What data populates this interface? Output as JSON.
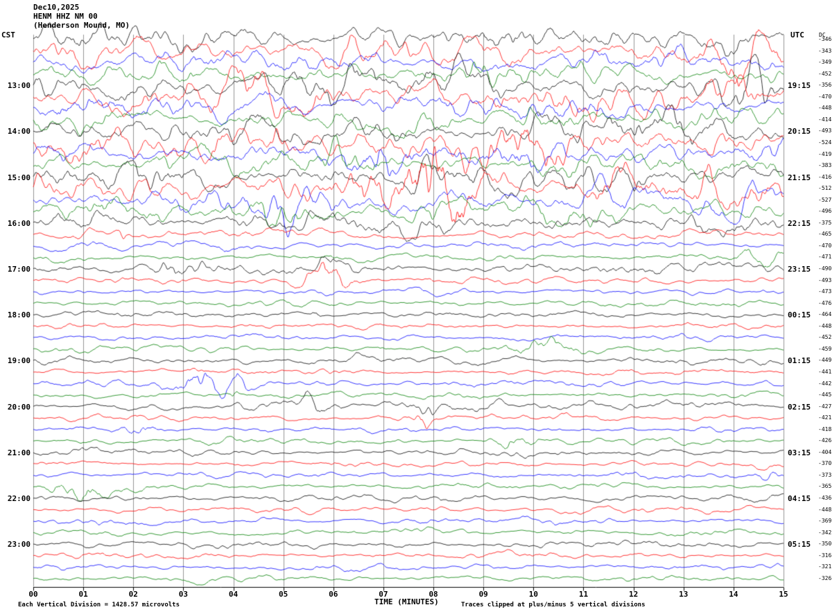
{
  "header": {
    "date": "Dec10,2025",
    "station": "HENM HHZ NM 00",
    "location": "(Henderson Mound, MO)",
    "left_tz": "CST",
    "right_tz": "UTC",
    "dc_header": "DC"
  },
  "footer": {
    "scale_note": "Each Vertical Division = 1428.57 microvolts",
    "xlabel": "TIME (MINUTES)",
    "clip_note": "Traces clipped at plus/minus 5 vertical divisions"
  },
  "chart_data": {
    "type": "line",
    "subtype": "helicorder-seismogram",
    "title": "HENM HHZ NM 00 (Henderson Mound, MO) Dec10,2025",
    "xlabel": "TIME (MINUTES)",
    "x_range": [
      0,
      15
    ],
    "x_tick_labels": [
      "00",
      "01",
      "02",
      "03",
      "04",
      "05",
      "06",
      "07",
      "08",
      "09",
      "10",
      "11",
      "12",
      "13",
      "14",
      "15"
    ],
    "minutes_per_row": 15,
    "grid": true,
    "microvolts_per_division": 1428.57,
    "clip_divisions": 5,
    "left_timezone": "CST",
    "right_timezone": "UTC",
    "trace_colors": {
      "black": "#000000",
      "red": "#ff0000",
      "blue": "#0000ff",
      "green": "#007f00"
    },
    "color_cycle": [
      "black",
      "red",
      "blue",
      "green"
    ],
    "rows": [
      {
        "cst": "12:00",
        "cst_label": "",
        "utc_label": "",
        "dc": -346,
        "color": "black",
        "noise": 3.2,
        "events": [
          [
            13.9,
            2.5,
            0.3
          ]
        ]
      },
      {
        "cst": "12:15",
        "cst_label": "",
        "utc_label": "",
        "dc": -343,
        "color": "red",
        "noise": 3.4,
        "events": [
          [
            2.0,
            2,
            0.3
          ],
          [
            14.1,
            3.5,
            0.4
          ]
        ]
      },
      {
        "cst": "12:30",
        "cst_label": "",
        "utc_label": "",
        "dc": -349,
        "color": "blue",
        "noise": 3.0,
        "events": []
      },
      {
        "cst": "12:45",
        "cst_label": "",
        "utc_label": "",
        "dc": -452,
        "color": "green",
        "noise": 2.8,
        "events": [
          [
            9.0,
            2,
            0.4
          ]
        ]
      },
      {
        "cst": "13:00",
        "cst_label": "13:00",
        "utc_label": "19:15",
        "dc": -356,
        "color": "black",
        "noise": 3.8,
        "events": [
          [
            6.0,
            2,
            0.5
          ],
          [
            14.5,
            2.5,
            0.3
          ]
        ]
      },
      {
        "cst": "13:15",
        "cst_label": "",
        "utc_label": "",
        "dc": -470,
        "color": "red",
        "noise": 4.0,
        "events": [
          [
            4.2,
            2.5,
            0.4
          ],
          [
            9.5,
            2,
            0.5
          ]
        ]
      },
      {
        "cst": "13:30",
        "cst_label": "",
        "utc_label": "",
        "dc": -448,
        "color": "blue",
        "noise": 3.2,
        "events": [
          [
            0.6,
            2,
            0.3
          ]
        ]
      },
      {
        "cst": "13:45",
        "cst_label": "",
        "utc_label": "",
        "dc": -414,
        "color": "green",
        "noise": 2.8,
        "events": [
          [
            10.5,
            2.5,
            0.5
          ]
        ]
      },
      {
        "cst": "14:00",
        "cst_label": "14:00",
        "utc_label": "20:15",
        "dc": -493,
        "color": "black",
        "noise": 3.6,
        "events": [
          [
            12.0,
            2,
            0.5
          ]
        ]
      },
      {
        "cst": "14:15",
        "cst_label": "",
        "utc_label": "",
        "dc": -524,
        "color": "red",
        "noise": 4.0,
        "events": [
          [
            5.0,
            3,
            0.3
          ],
          [
            9.3,
            4,
            0.6
          ],
          [
            10.3,
            3,
            0.4
          ],
          [
            13.7,
            3,
            0.3
          ]
        ]
      },
      {
        "cst": "14:30",
        "cst_label": "",
        "utc_label": "",
        "dc": -419,
        "color": "blue",
        "noise": 3.4,
        "events": [
          [
            7.0,
            3,
            0.4
          ],
          [
            10.2,
            3,
            0.5
          ]
        ]
      },
      {
        "cst": "14:45",
        "cst_label": "",
        "utc_label": "",
        "dc": -383,
        "color": "green",
        "noise": 3.0,
        "events": [
          [
            6.5,
            2.5,
            0.4
          ],
          [
            10.6,
            2.5,
            0.3
          ]
        ]
      },
      {
        "cst": "15:00",
        "cst_label": "15:00",
        "utc_label": "21:15",
        "dc": -416,
        "color": "black",
        "noise": 3.5,
        "events": [
          [
            8.0,
            2,
            0.5
          ]
        ]
      },
      {
        "cst": "15:15",
        "cst_label": "",
        "utc_label": "",
        "dc": -512,
        "color": "red",
        "noise": 3.8,
        "events": [
          [
            6.8,
            4,
            0.4
          ],
          [
            7.9,
            9,
            0.3
          ],
          [
            8.35,
            6,
            0.4
          ],
          [
            11.6,
            3,
            0.5
          ],
          [
            13.4,
            3,
            0.4
          ]
        ]
      },
      {
        "cst": "15:30",
        "cst_label": "",
        "utc_label": "",
        "dc": -527,
        "color": "blue",
        "noise": 3.4,
        "events": [
          [
            5.0,
            3,
            0.4
          ]
        ]
      },
      {
        "cst": "15:45",
        "cst_label": "",
        "utc_label": "",
        "dc": -496,
        "color": "green",
        "noise": 2.9,
        "events": [
          [
            5.0,
            3,
            0.5
          ]
        ]
      },
      {
        "cst": "16:00",
        "cst_label": "16:00",
        "utc_label": "22:15",
        "dc": -375,
        "color": "black",
        "noise": 2.8,
        "events": []
      },
      {
        "cst": "16:15",
        "cst_label": "",
        "utc_label": "",
        "dc": -465,
        "color": "red",
        "noise": 1.1,
        "events": [
          [
            1.0,
            2.2,
            0.15
          ],
          [
            1.8,
            1.8,
            0.1
          ]
        ]
      },
      {
        "cst": "16:30",
        "cst_label": "",
        "utc_label": "",
        "dc": -470,
        "color": "blue",
        "noise": 1.0,
        "events": [
          [
            3.9,
            1.8,
            0.2
          ]
        ]
      },
      {
        "cst": "16:45",
        "cst_label": "",
        "utc_label": "",
        "dc": -471,
        "color": "green",
        "noise": 0.9,
        "events": [
          [
            14.5,
            2.2,
            0.3
          ]
        ]
      },
      {
        "cst": "17:00",
        "cst_label": "17:00",
        "utc_label": "23:15",
        "dc": -490,
        "color": "black",
        "noise": 1.6,
        "events": [
          [
            2.9,
            2.8,
            0.3
          ],
          [
            5.8,
            1.4,
            0.3
          ]
        ]
      },
      {
        "cst": "17:15",
        "cst_label": "",
        "utc_label": "",
        "dc": -493,
        "color": "red",
        "noise": 0.9,
        "events": [
          [
            5.5,
            1.8,
            0.25
          ],
          [
            6.0,
            3.8,
            0.3
          ]
        ]
      },
      {
        "cst": "17:30",
        "cst_label": "",
        "utc_label": "",
        "dc": -473,
        "color": "blue",
        "noise": 0.8,
        "events": []
      },
      {
        "cst": "17:45",
        "cst_label": "",
        "utc_label": "",
        "dc": -476,
        "color": "green",
        "noise": 0.8,
        "events": []
      },
      {
        "cst": "18:00",
        "cst_label": "18:00",
        "utc_label": "00:15",
        "dc": -464,
        "color": "black",
        "noise": 0.9,
        "events": [
          [
            5.65,
            4,
            0.05
          ]
        ]
      },
      {
        "cst": "18:15",
        "cst_label": "",
        "utc_label": "",
        "dc": -448,
        "color": "red",
        "noise": 0.8,
        "events": []
      },
      {
        "cst": "18:30",
        "cst_label": "",
        "utc_label": "",
        "dc": -452,
        "color": "blue",
        "noise": 0.8,
        "events": []
      },
      {
        "cst": "18:45",
        "cst_label": "",
        "utc_label": "",
        "dc": -459,
        "color": "green",
        "noise": 0.8,
        "events": [
          [
            10.3,
            3,
            0.5
          ]
        ]
      },
      {
        "cst": "19:00",
        "cst_label": "19:00",
        "utc_label": "01:15",
        "dc": -449,
        "color": "black",
        "noise": 1.1,
        "events": []
      },
      {
        "cst": "19:15",
        "cst_label": "",
        "utc_label": "",
        "dc": -441,
        "color": "red",
        "noise": 0.8,
        "events": []
      },
      {
        "cst": "19:30",
        "cst_label": "",
        "utc_label": "",
        "dc": -442,
        "color": "blue",
        "noise": 0.9,
        "events": [
          [
            3.3,
            4.5,
            0.35
          ],
          [
            4.1,
            2.8,
            0.3
          ]
        ]
      },
      {
        "cst": "19:45",
        "cst_label": "",
        "utc_label": "",
        "dc": -445,
        "color": "green",
        "noise": 0.8,
        "events": [
          [
            4.0,
            3.5,
            0.08
          ]
        ]
      },
      {
        "cst": "20:00",
        "cst_label": "20:00",
        "utc_label": "02:15",
        "dc": -427,
        "color": "black",
        "noise": 1.0,
        "events": [
          [
            5.6,
            2.2,
            0.3
          ],
          [
            7.9,
            2.6,
            0.4
          ],
          [
            9.1,
            1.6,
            0.25
          ]
        ]
      },
      {
        "cst": "20:15",
        "cst_label": "",
        "utc_label": "",
        "dc": -421,
        "color": "red",
        "noise": 0.8,
        "events": [
          [
            7.8,
            3.8,
            0.1
          ]
        ]
      },
      {
        "cst": "20:30",
        "cst_label": "",
        "utc_label": "",
        "dc": -418,
        "color": "blue",
        "noise": 0.8,
        "events": [
          [
            2.2,
            2.6,
            0.25
          ]
        ]
      },
      {
        "cst": "20:45",
        "cst_label": "",
        "utc_label": "",
        "dc": -426,
        "color": "green",
        "noise": 0.8,
        "events": [
          [
            9.6,
            2.6,
            0.25
          ]
        ]
      },
      {
        "cst": "21:00",
        "cst_label": "21:00",
        "utc_label": "03:15",
        "dc": -404,
        "color": "black",
        "noise": 0.9,
        "events": []
      },
      {
        "cst": "21:15",
        "cst_label": "",
        "utc_label": "",
        "dc": -370,
        "color": "red",
        "noise": 0.8,
        "events": []
      },
      {
        "cst": "21:30",
        "cst_label": "",
        "utc_label": "",
        "dc": -373,
        "color": "blue",
        "noise": 0.8,
        "events": [
          [
            14.7,
            1.4,
            0.2
          ]
        ]
      },
      {
        "cst": "21:45",
        "cst_label": "",
        "utc_label": "",
        "dc": -365,
        "color": "green",
        "noise": 0.8,
        "events": [
          [
            1.0,
            3.5,
            0.45
          ]
        ]
      },
      {
        "cst": "22:00",
        "cst_label": "22:00",
        "utc_label": "04:15",
        "dc": -436,
        "color": "black",
        "noise": 0.9,
        "events": []
      },
      {
        "cst": "22:15",
        "cst_label": "",
        "utc_label": "",
        "dc": -448,
        "color": "red",
        "noise": 0.8,
        "events": []
      },
      {
        "cst": "22:30",
        "cst_label": "",
        "utc_label": "",
        "dc": -369,
        "color": "blue",
        "noise": 0.8,
        "events": []
      },
      {
        "cst": "22:45",
        "cst_label": "",
        "utc_label": "",
        "dc": -342,
        "color": "green",
        "noise": 0.8,
        "events": []
      },
      {
        "cst": "23:00",
        "cst_label": "23:00",
        "utc_label": "05:15",
        "dc": -350,
        "color": "black",
        "noise": 0.9,
        "events": []
      },
      {
        "cst": "23:15",
        "cst_label": "",
        "utc_label": "",
        "dc": -316,
        "color": "red",
        "noise": 0.8,
        "events": []
      },
      {
        "cst": "23:30",
        "cst_label": "",
        "utc_label": "",
        "dc": -321,
        "color": "blue",
        "noise": 0.8,
        "events": []
      },
      {
        "cst": "23:45",
        "cst_label": "",
        "utc_label": "",
        "dc": -326,
        "color": "green",
        "noise": 0.8,
        "events": []
      }
    ]
  }
}
